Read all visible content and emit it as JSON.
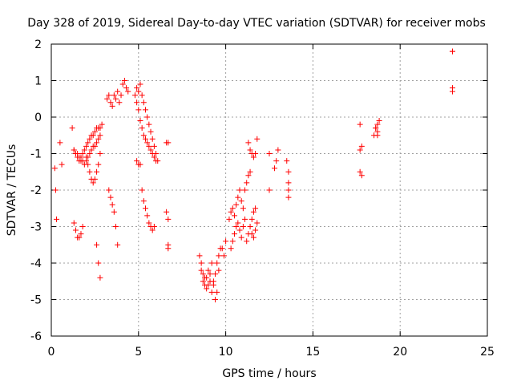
{
  "chart_data": {
    "type": "scatter",
    "title": "Day 328 of 2019, Sidereal Day-to-day VTEC variation (SDTVAR) for receiver mobs",
    "xlabel": "GPS time / hours",
    "ylabel": "SDTVAR / TECUs",
    "xlim": [
      0,
      25
    ],
    "ylim": [
      -6,
      2
    ],
    "xticks": [
      0,
      5,
      10,
      15,
      20,
      25
    ],
    "yticks": [
      -6,
      -5,
      -4,
      -3,
      -2,
      -1,
      0,
      1,
      2
    ],
    "xtick_labels": [
      "0",
      "5",
      "10",
      "15",
      "20",
      "25"
    ],
    "ytick_labels": [
      "-6",
      "-5",
      "-4",
      "-3",
      "-2",
      "-1",
      "0",
      "1",
      "2"
    ],
    "grid": true,
    "marker": "plus",
    "color": "#ff0000",
    "series": [
      {
        "x": [
          0.2,
          0.25,
          0.3,
          0.5,
          0.6,
          1.2,
          1.3,
          1.4,
          1.5,
          1.6,
          1.7,
          1.8,
          1.9,
          2.0,
          2.1,
          2.2,
          2.3,
          2.4,
          2.5,
          2.6,
          2.7,
          2.8,
          2.9,
          1.3,
          1.4,
          1.5,
          1.6,
          1.7,
          1.8,
          1.9,
          2.0,
          2.1,
          2.2,
          2.3,
          2.4,
          2.5,
          2.6,
          2.7,
          2.8,
          1.3,
          1.4,
          1.5,
          1.6,
          1.7,
          1.8,
          2.0,
          2.1,
          2.2,
          2.3,
          2.4,
          2.5,
          2.6,
          2.7,
          2.8,
          2.6,
          2.7,
          2.8,
          3.2,
          3.3,
          3.4,
          3.5,
          3.6,
          3.7,
          3.8,
          3.9,
          4.0,
          4.1,
          4.2,
          4.3,
          4.4,
          3.3,
          3.4,
          3.5,
          3.6,
          3.7,
          3.8,
          4.9,
          5.0,
          5.1,
          5.2,
          5.3,
          5.4,
          5.5,
          5.6,
          5.7,
          5.8,
          5.9,
          6.0,
          6.1,
          4.9,
          5.0,
          5.1,
          5.2,
          5.3,
          5.4,
          5.5,
          5.6,
          5.7,
          5.8,
          5.9,
          4.8,
          4.9,
          5.0,
          5.1,
          5.2,
          5.3,
          5.4,
          5.5,
          5.6,
          5.7,
          5.8,
          5.9,
          6.0,
          6.6,
          6.7,
          6.6,
          6.7,
          6.7,
          6.7,
          8.5,
          8.6,
          8.7,
          8.8,
          8.9,
          9.0,
          9.1,
          9.2,
          9.3,
          9.4,
          9.5,
          9.6,
          9.7,
          9.8,
          9.9,
          10.0,
          8.6,
          8.7,
          8.8,
          8.9,
          9.0,
          9.1,
          9.2,
          9.3,
          9.4,
          9.5,
          9.6,
          10.2,
          10.3,
          10.4,
          10.5,
          10.6,
          10.7,
          10.8,
          10.9,
          11.0,
          11.1,
          11.2,
          11.3,
          11.4,
          11.5,
          11.6,
          11.7,
          11.8,
          10.3,
          10.4,
          10.5,
          10.6,
          10.7,
          10.8,
          10.9,
          11.0,
          11.1,
          11.2,
          11.3,
          11.4,
          11.5,
          11.6,
          11.7,
          11.3,
          11.4,
          11.5,
          11.6,
          11.7,
          11.8,
          12.5,
          12.5,
          12.8,
          12.9,
          13.0,
          13.5,
          13.6,
          13.6,
          13.6,
          13.6,
          17.7,
          17.8,
          17.7,
          17.8,
          17.7,
          18.5,
          18.6,
          18.7,
          18.8,
          18.7,
          18.6,
          18.7,
          23.0,
          23.0,
          23.0,
          23.0
        ],
        "y": [
          -1.4,
          -2.0,
          -2.8,
          -0.7,
          -1.3,
          -0.3,
          -0.9,
          -1.0,
          -1.1,
          -1.2,
          -1.1,
          -1.0,
          -0.9,
          -0.8,
          -0.7,
          -0.6,
          -0.5,
          -0.5,
          -0.4,
          -0.3,
          -0.3,
          -0.3,
          -0.2,
          -0.9,
          -1.0,
          -1.0,
          -1.1,
          -1.2,
          -1.2,
          -1.3,
          -1.2,
          -1.1,
          -1.0,
          -0.9,
          -0.8,
          -0.8,
          -0.7,
          -0.6,
          -0.5,
          -2.9,
          -3.1,
          -3.3,
          -3.3,
          -3.2,
          -3.0,
          -1.1,
          -1.3,
          -1.5,
          -1.7,
          -1.8,
          -1.7,
          -1.5,
          -1.3,
          -1.0,
          -3.5,
          -4.0,
          -4.4,
          0.5,
          0.6,
          0.4,
          0.3,
          0.6,
          0.5,
          0.7,
          0.4,
          0.6,
          0.9,
          1.0,
          0.8,
          0.7,
          -2.0,
          -2.2,
          -2.4,
          -2.6,
          -3.0,
          -3.5,
          0.8,
          0.7,
          0.9,
          0.6,
          0.4,
          0.2,
          0.0,
          -0.2,
          -0.4,
          -0.6,
          -0.8,
          -1.0,
          -1.2,
          -1.2,
          -1.3,
          -1.3,
          -2.0,
          -2.3,
          -2.5,
          -2.7,
          -2.9,
          -3.0,
          -3.1,
          -3.0,
          0.6,
          0.4,
          0.2,
          -0.1,
          -0.3,
          -0.5,
          -0.6,
          -0.7,
          -0.8,
          -0.9,
          -1.0,
          -1.1,
          -1.2,
          -0.7,
          -0.7,
          -2.6,
          -2.8,
          -3.5,
          -3.6,
          -3.8,
          -4.0,
          -4.3,
          -4.6,
          -4.4,
          -4.2,
          -4.5,
          -4.8,
          -4.6,
          -4.3,
          -4.0,
          -3.8,
          -3.6,
          -3.6,
          -3.8,
          -3.4,
          -4.2,
          -4.5,
          -4.4,
          -4.7,
          -4.6,
          -4.3,
          -4.0,
          -4.5,
          -5.0,
          -4.8,
          -4.2,
          -2.8,
          -2.6,
          -2.5,
          -2.7,
          -2.4,
          -2.2,
          -2.0,
          -2.3,
          -2.5,
          -2.0,
          -1.8,
          -1.6,
          -1.5,
          -2.8,
          -2.6,
          -2.5,
          -2.9,
          -3.6,
          -3.4,
          -3.2,
          -3.0,
          -2.9,
          -3.1,
          -3.3,
          -3.0,
          -2.8,
          -3.4,
          -3.2,
          -3.0,
          -3.2,
          -3.3,
          -3.1,
          -0.7,
          -0.9,
          -1.0,
          -1.1,
          -1.0,
          -0.6,
          -1.0,
          -2.0,
          -1.4,
          -1.2,
          -0.9,
          -1.2,
          -1.5,
          -1.8,
          -2.0,
          -2.2,
          -0.9,
          -0.8,
          -1.5,
          -1.6,
          -0.2,
          -0.5,
          -0.3,
          -0.2,
          -0.1,
          -0.4,
          -0.3,
          -0.5,
          1.8,
          1.8,
          0.8,
          0.7
        ]
      }
    ]
  }
}
